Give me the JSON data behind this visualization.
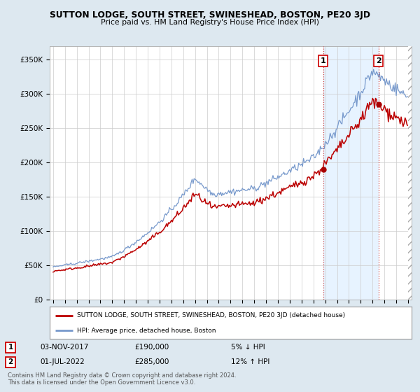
{
  "title": "SUTTON LODGE, SOUTH STREET, SWINESHEAD, BOSTON, PE20 3JD",
  "subtitle": "Price paid vs. HM Land Registry's House Price Index (HPI)",
  "ylabel_ticks": [
    "£0",
    "£50K",
    "£100K",
    "£150K",
    "£200K",
    "£250K",
    "£300K",
    "£350K"
  ],
  "ytick_values": [
    0,
    50000,
    100000,
    150000,
    200000,
    250000,
    300000,
    350000
  ],
  "ylim": [
    0,
    370000
  ],
  "sale1_date": "03-NOV-2017",
  "sale1_price": 190000,
  "sale1_label": "1",
  "sale1_pct": "5% ↓ HPI",
  "sale2_date": "01-JUL-2022",
  "sale2_price": 285000,
  "sale2_label": "2",
  "sale2_pct": "12% ↑ HPI",
  "legend_line1": "SUTTON LODGE, SOUTH STREET, SWINESHEAD, BOSTON, PE20 3JD (detached house)",
  "legend_line2": "HPI: Average price, detached house, Boston",
  "footer1": "Contains HM Land Registry data © Crown copyright and database right 2024.",
  "footer2": "This data is licensed under the Open Government Licence v3.0.",
  "line_color_red": "#bb0000",
  "line_color_blue": "#7799cc",
  "bg_color": "#dde8f0",
  "plot_bg": "#ffffff",
  "grid_color": "#cccccc",
  "vline_color": "#cc4444",
  "shade_color": "#ddeeff",
  "marker_color": "#aa0000"
}
